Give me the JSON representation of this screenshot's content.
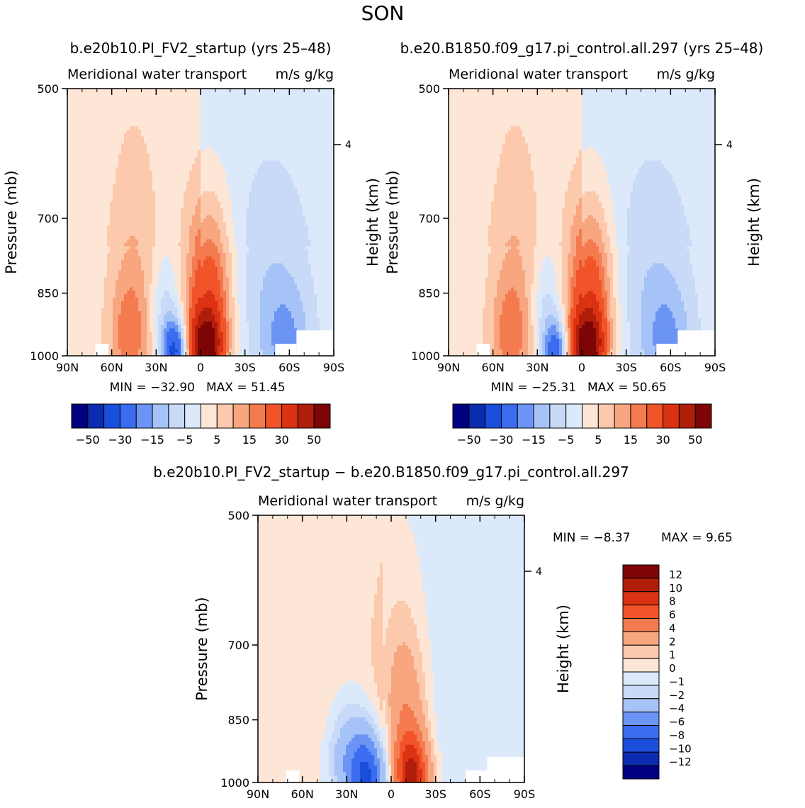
{
  "page": {
    "title": "SON"
  },
  "colors": {
    "cb1": [
      "#000080",
      "#0a2cb0",
      "#1a4fdc",
      "#3b6cf0",
      "#6b94f4",
      "#a6c3f7",
      "#c8daf7",
      "#dbe9fb",
      "#fde6d6",
      "#fcc9ad",
      "#f7a680",
      "#f47a50",
      "#f05428",
      "#dc3214",
      "#b01e0a",
      "#7e0505"
    ],
    "cb2": [
      "#000080",
      "#0a2cb0",
      "#1a4fdc",
      "#3b6cf0",
      "#6b94f4",
      "#a6c3f7",
      "#c8daf7",
      "#dbe9fb",
      "#fde6d6",
      "#fcc9ad",
      "#f7a680",
      "#f47a50",
      "#f05428",
      "#dc3214",
      "#b01e0a",
      "#7e0505"
    ]
  },
  "chart_data": [
    {
      "type": "contour",
      "panel": "top-left",
      "title": "b.e20b10.PI_FV2_startup (yrs 25–48)",
      "left_title": "Meridional water transport",
      "right_title": "m/s g/kg",
      "ylabel": "Pressure (mb)",
      "right_label": "Height (km)",
      "xticks": [
        "90N",
        "60N",
        "30N",
        "0",
        "30S",
        "60S",
        "90S"
      ],
      "yticks": [
        "500",
        "700",
        "850",
        "1000"
      ],
      "ytick_values": [
        500,
        700,
        850,
        1000
      ],
      "right_ticks": [
        "4"
      ],
      "right_tick_values": [
        4
      ],
      "xlim": [
        90,
        -90
      ],
      "ylim": [
        1000,
        500
      ],
      "levels": [
        -50,
        -40,
        -30,
        -20,
        -15,
        -10,
        -5,
        0,
        5,
        10,
        15,
        20,
        30,
        40,
        50
      ],
      "colorbar_labels": [
        "−50",
        "−30",
        "−15",
        "−5",
        "5",
        "15",
        "30",
        "50"
      ],
      "min_label": "MIN = −32.90",
      "max_label": "MAX = 51.45",
      "min": -32.9,
      "max": 51.45,
      "features": [
        {
          "lat": 45,
          "p": 960,
          "value": 15,
          "desc": "northern hemisphere positive lobe"
        },
        {
          "lat": 18,
          "p": 990,
          "value": -30,
          "desc": "negative core north of equator"
        },
        {
          "lat": -3,
          "p": 980,
          "value": 50,
          "desc": "strong positive core south of equator"
        },
        {
          "lat": -60,
          "p": 900,
          "value": -10,
          "desc": "southern hemisphere negative lobe"
        }
      ]
    },
    {
      "type": "contour",
      "panel": "top-right",
      "title": "b.e20.B1850.f09_g17.pi_control.all.297 (yrs 25–48)",
      "left_title": "Meridional water transport",
      "right_title": "m/s g/kg",
      "ylabel": "Pressure (mb)",
      "right_label": "Height (km)",
      "xticks": [
        "90N",
        "60N",
        "30N",
        "0",
        "30S",
        "60S",
        "90S"
      ],
      "yticks": [
        "500",
        "700",
        "850",
        "1000"
      ],
      "ytick_values": [
        500,
        700,
        850,
        1000
      ],
      "right_ticks": [
        "4"
      ],
      "right_tick_values": [
        4
      ],
      "xlim": [
        90,
        -90
      ],
      "ylim": [
        1000,
        500
      ],
      "levels": [
        -50,
        -40,
        -30,
        -20,
        -15,
        -10,
        -5,
        0,
        5,
        10,
        15,
        20,
        30,
        40,
        50
      ],
      "colorbar_labels": [
        "−50",
        "−30",
        "−15",
        "−5",
        "5",
        "15",
        "30",
        "50"
      ],
      "min_label": "MIN = −25.31",
      "max_label": "MAX = 50.65",
      "min": -25.31,
      "max": 50.65,
      "features": [
        {
          "lat": 45,
          "p": 960,
          "value": 15,
          "desc": "northern hemisphere positive lobe"
        },
        {
          "lat": 18,
          "p": 990,
          "value": -25,
          "desc": "negative core north of equator"
        },
        {
          "lat": -3,
          "p": 980,
          "value": 50,
          "desc": "strong positive core south of equator"
        },
        {
          "lat": -55,
          "p": 920,
          "value": -10,
          "desc": "southern hemisphere negative lobe"
        }
      ]
    },
    {
      "type": "contour",
      "panel": "bottom",
      "title": "b.e20b10.PI_FV2_startup − b.e20.B1850.f09_g17.pi_control.all.297",
      "left_title": "Meridional water transport",
      "right_title": "m/s g/kg",
      "ylabel": "Pressure (mb)",
      "right_label": "Height (km)",
      "xticks": [
        "90N",
        "60N",
        "30N",
        "0",
        "30S",
        "60S",
        "90S"
      ],
      "yticks": [
        "500",
        "700",
        "850",
        "1000"
      ],
      "ytick_values": [
        500,
        700,
        850,
        1000
      ],
      "right_ticks": [
        "4"
      ],
      "right_tick_values": [
        4
      ],
      "xlim": [
        90,
        -90
      ],
      "ylim": [
        1000,
        500
      ],
      "levels": [
        -12,
        -10,
        -8,
        -6,
        -4,
        -2,
        -1,
        0,
        1,
        2,
        4,
        6,
        8,
        10,
        12
      ],
      "colorbar_labels": [
        "12",
        "10",
        "8",
        "6",
        "4",
        "2",
        "1",
        "0",
        "−1",
        "−2",
        "−4",
        "−6",
        "−8",
        "−10",
        "−12"
      ],
      "min_label": "MIN = −8.37",
      "max_label": "MAX = 9.65",
      "min": -8.37,
      "max": 9.65,
      "features": [
        {
          "lat": 15,
          "p": 960,
          "value": -8,
          "desc": "negative core north of equator"
        },
        {
          "lat": -15,
          "p": 980,
          "value": 9,
          "desc": "positive core south of equator"
        }
      ]
    }
  ]
}
